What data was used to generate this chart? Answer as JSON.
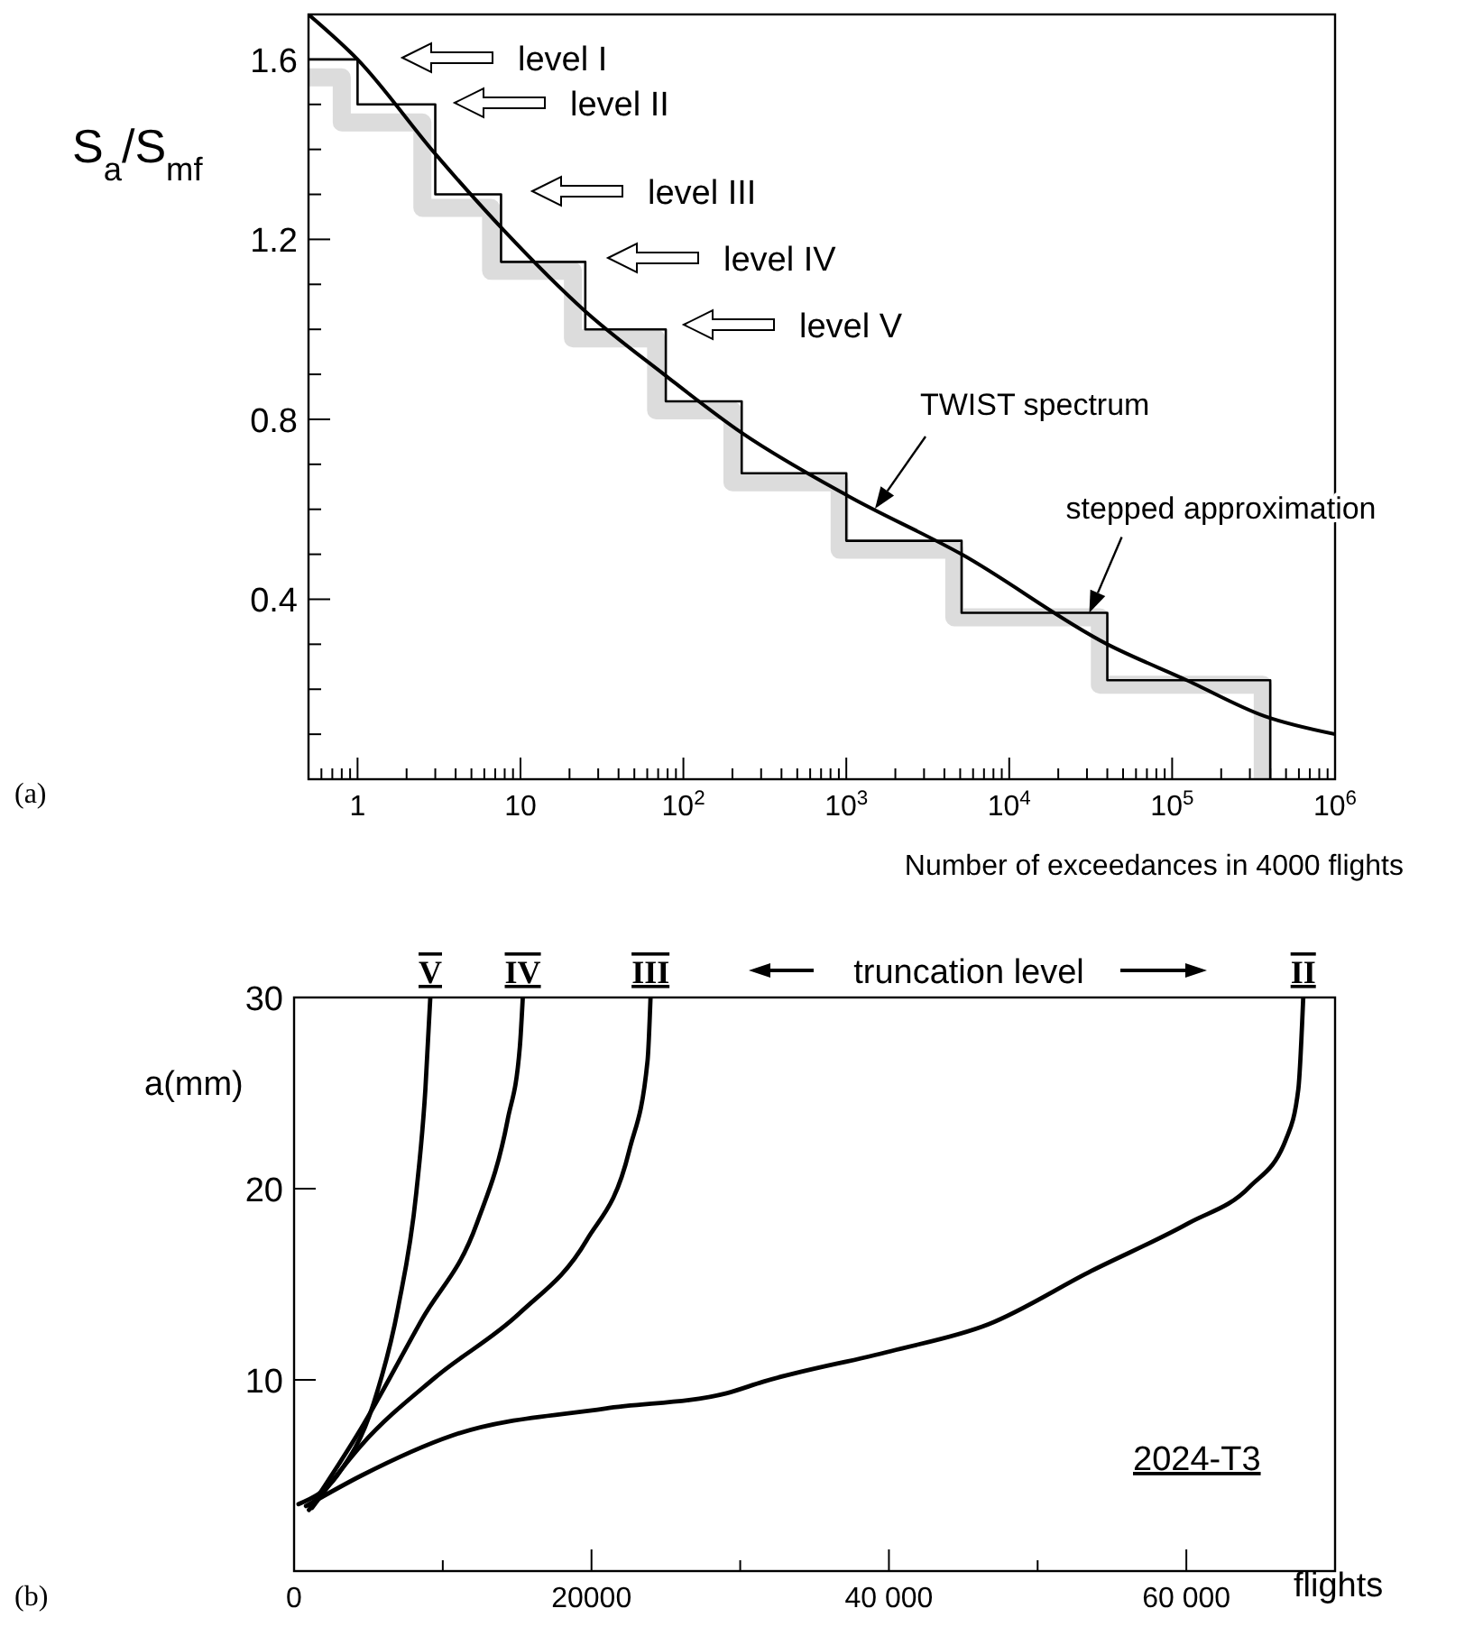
{
  "chart_data": [
    {
      "type": "line",
      "xlabel": "Number of exceedances in 4000 flights",
      "ylabel": "S$_{a}$/S$_{mf}$",
      "log": "x",
      "xlim": [
        0.5,
        1000000
      ],
      "ylim": [
        0,
        1.7
      ],
      "xticks": [
        {
          "value": 0.6,
          "label": null
        },
        {
          "value": 0.7,
          "label": null
        },
        {
          "value": 0.8,
          "label": null
        },
        {
          "value": 0.9,
          "label": null
        },
        1,
        {
          "value": 2,
          "label": null
        },
        {
          "value": 3,
          "label": null
        },
        {
          "value": 4,
          "label": null
        },
        {
          "value": 5,
          "label": null
        },
        {
          "value": 6,
          "label": null
        },
        {
          "value": 7,
          "label": null
        },
        {
          "value": 8,
          "label": null
        },
        {
          "value": 9,
          "label": null
        },
        10,
        {
          "value": 20,
          "label": null
        },
        {
          "value": 30,
          "label": null
        },
        {
          "value": 40,
          "label": null
        },
        {
          "value": 50,
          "label": null
        },
        {
          "value": 60,
          "label": null
        },
        {
          "value": 70,
          "label": null
        },
        {
          "value": 80,
          "label": null
        },
        {
          "value": 90,
          "label": null
        },
        {
          "value": 100,
          "label": "10$^{2}$"
        },
        {
          "value": 200,
          "label": null
        },
        {
          "value": 300,
          "label": null
        },
        {
          "value": 400,
          "label": null
        },
        {
          "value": 500,
          "label": null
        },
        {
          "value": 600,
          "label": null
        },
        {
          "value": 700,
          "label": null
        },
        {
          "value": 800,
          "label": null
        },
        {
          "value": 900,
          "label": null
        },
        {
          "value": 1000,
          "label": "10$^{3}$"
        },
        {
          "value": 2000,
          "label": null
        },
        {
          "value": 3000,
          "label": null
        },
        {
          "value": 4000,
          "label": null
        },
        {
          "value": 5000,
          "label": null
        },
        {
          "value": 6000,
          "label": null
        },
        {
          "value": 7000,
          "label": null
        },
        {
          "value": 8000,
          "label": null
        },
        {
          "value": 9000,
          "label": null
        },
        {
          "value": 10000,
          "label": "10$^{4}$"
        },
        {
          "value": 20000,
          "label": null
        },
        {
          "value": 30000,
          "label": null
        },
        {
          "value": 40000,
          "label": null
        },
        {
          "value": 50000,
          "label": null
        },
        {
          "value": 60000,
          "label": null
        },
        {
          "value": 70000,
          "label": null
        },
        {
          "value": 80000,
          "label": null
        },
        {
          "value": 90000,
          "label": null
        },
        {
          "value": 100000,
          "label": "10$^{5}$"
        },
        {
          "value": 200000,
          "label": null
        },
        {
          "value": 300000,
          "label": null
        },
        {
          "value": 400000,
          "label": null
        },
        {
          "value": 500000,
          "label": null
        },
        {
          "value": 600000,
          "label": null
        },
        {
          "value": 700000,
          "label": null
        },
        {
          "value": 800000,
          "label": null
        },
        {
          "value": 900000,
          "label": null
        },
        {
          "value": 1000000,
          "label": "10$^{6}$"
        }
      ],
      "yticks": [
        {
          "value": 0.1,
          "label": null
        },
        {
          "value": 0.2,
          "label": null
        },
        {
          "value": 0.3,
          "label": null
        },
        0.4,
        {
          "value": 0.5,
          "label": null
        },
        {
          "value": 0.6,
          "label": null
        },
        {
          "value": 0.7,
          "label": null
        },
        0.8,
        {
          "value": 0.9,
          "label": null
        },
        {
          "value": 1.0,
          "label": null
        },
        {
          "value": 1.1,
          "label": null
        },
        1.2,
        {
          "value": 1.3,
          "label": null
        },
        {
          "value": 1.4,
          "label": null
        },
        {
          "value": 1.5,
          "label": null
        },
        1.6
      ],
      "grid": false,
      "legend": false,
      "marker": "none",
      "annotations": [
        "level I",
        "level II",
        "level III",
        "level IV",
        "level V",
        "TWIST spectrum",
        {
          "text": "stepped approximation",
          "x": 31000,
          "y": 0.37
        },
        "(a)"
      ],
      "series": [
        {
          "type": "step",
          "color": "#dcdcdc",
          "x": [
            0.5,
            0.8,
            2.5,
            6.6,
            21,
            68,
            200,
            910,
            4600,
            36000,
            360000
          ],
          "values": [
            1.56,
            1.46,
            1.27,
            1.13,
            0.98,
            0.82,
            0.66,
            0.51,
            0.36,
            0.21,
            0
          ]
        },
        {
          "type": "step",
          "color": "#000000",
          "x": [
            0.5,
            1,
            3,
            7.6,
            25,
            78,
            228,
            1000,
            5100,
            40000,
            400000
          ],
          "values": [
            1.6,
            1.5,
            1.3,
            1.15,
            1.0,
            0.84,
            0.68,
            0.53,
            0.37,
            0.22,
            0
          ]
        },
        {
          "type": "line",
          "color": "#000000",
          "x": [
            0.5,
            1,
            3,
            7.9,
            25,
            76,
            228,
            1020,
            5100,
            40000,
            123000,
            370000,
            1000000
          ],
          "values": [
            1.7,
            1.6,
            1.39,
            1.22,
            1.04,
            0.9,
            0.77,
            0.63,
            0.5,
            0.3,
            0.22,
            0.14,
            0.1
          ]
        }
      ]
    },
    {
      "type": "line",
      "xlabel": "flights",
      "ylabel": "a(mm)",
      "xlim": [
        0,
        70000
      ],
      "ylim": [
        0,
        30
      ],
      "xticks": [
        0,
        {
          "value": 10000,
          "label": null
        },
        20000,
        {
          "value": 30000,
          "label": null
        },
        {
          "value": 40000,
          "label": "40 000"
        },
        {
          "value": 50000,
          "label": null
        },
        {
          "value": 60000,
          "label": "60 000"
        }
      ],
      "yticks": [
        10,
        20,
        30
      ],
      "grid": false,
      "legend": false,
      "marker": "none",
      "annotations": [
        "truncation level",
        "2024-T3",
        "(b)"
      ],
      "series": [
        {
          "name": "V",
          "color": "#000000",
          "x": [
            300,
            2900,
            5360,
            7000,
            8220,
            8830,
            9160
          ],
          "values": [
            3.5,
            5.0,
            8.8,
            13.8,
            19.8,
            25.2,
            30
          ]
        },
        {
          "name": "IV",
          "color": "#000000",
          "x": [
            1000,
            4540,
            8630,
            12300,
            14360,
            15180,
            15380
          ],
          "values": [
            3.2,
            7.5,
            13.2,
            18.2,
            23.6,
            27.4,
            30
          ]
        },
        {
          "name": "III",
          "color": "#000000",
          "x": [
            1200,
            4540,
            9450,
            15180,
            19670,
            22540,
            23770,
            23970
          ],
          "values": [
            3.3,
            6.6,
            10.1,
            13.5,
            17.3,
            22.0,
            26.7,
            30
          ]
        },
        {
          "name": "II",
          "color": "#000000",
          "x": [
            800,
            4540,
            10670,
            20900,
            29080,
            31530,
            40120,
            46670,
            53620,
            60160,
            64260,
            66710,
            67530,
            67860
          ],
          "values": [
            3.4,
            5.0,
            7.1,
            8.5,
            9.3,
            9.9,
            11.5,
            12.9,
            15.7,
            18.2,
            20.1,
            22.6,
            25.2,
            30
          ]
        }
      ]
    }
  ]
}
